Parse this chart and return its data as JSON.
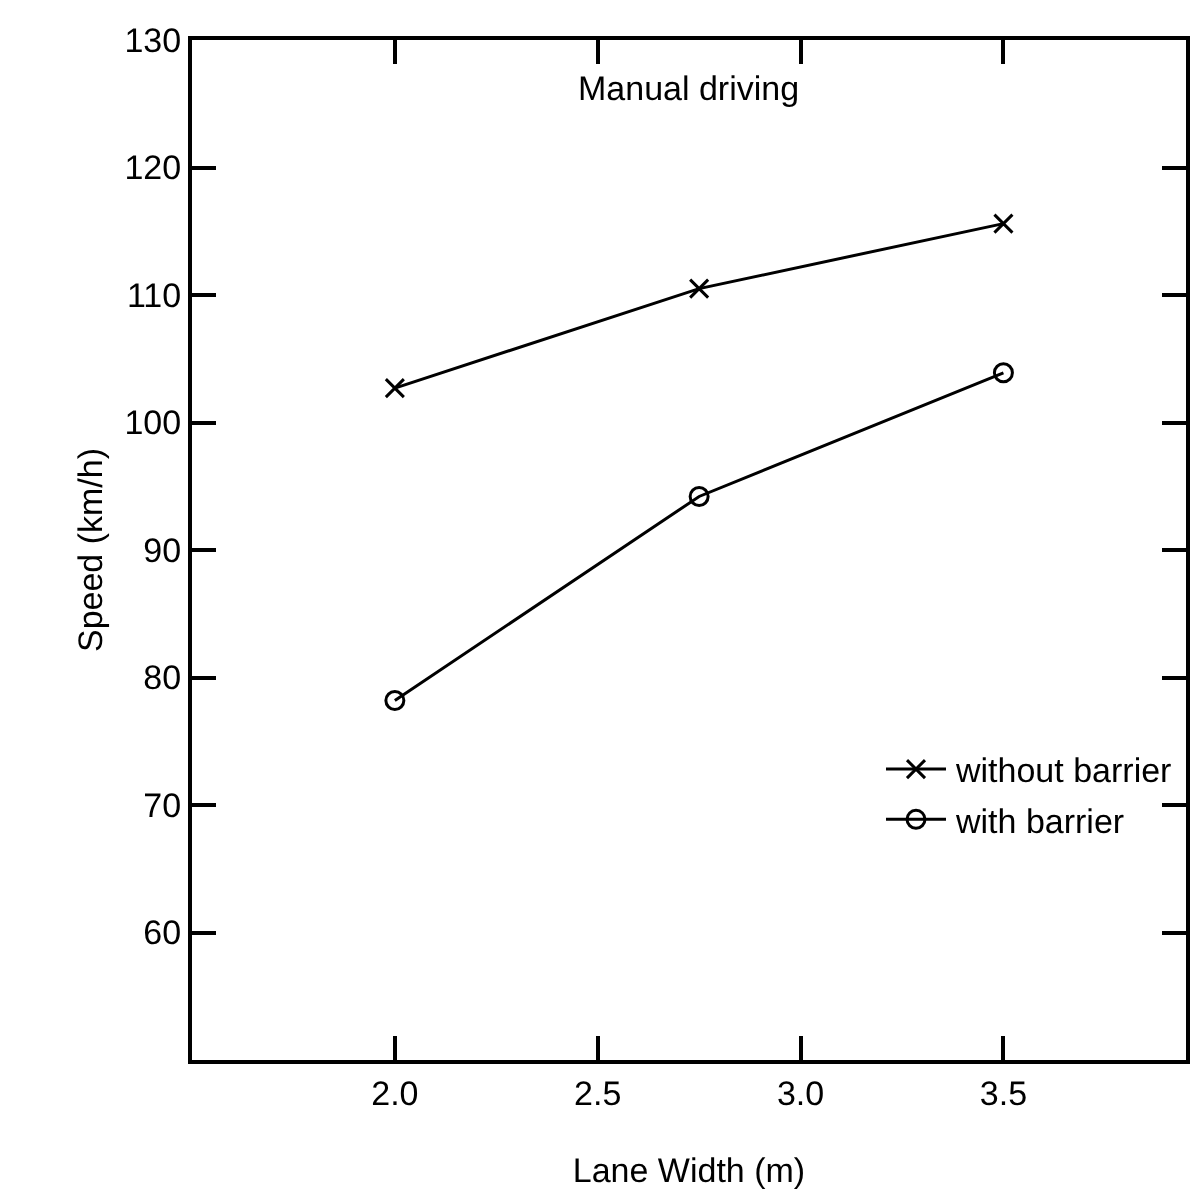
{
  "chart_data": {
    "type": "line",
    "annotations": [
      "Manual driving"
    ],
    "xlabel": "Lane Width (m)",
    "ylabel": "Speed (km/h)",
    "x": [
      2.0,
      2.75,
      3.5
    ],
    "series": [
      {
        "name": "without barrier",
        "color": "#000000",
        "marker": "cross",
        "values": [
          102.7,
          110.5,
          115.6
        ]
      },
      {
        "name": "with barrier",
        "color": "#000000",
        "marker": "circle",
        "values": [
          78.2,
          94.2,
          103.9
        ]
      }
    ],
    "xlim": [
      1.5,
      3.95
    ],
    "xticks": [
      {
        "value": 2.0,
        "label": "2.0"
      },
      2.5,
      {
        "value": 3.0,
        "label": "3.0"
      },
      3.5
    ],
    "ylim": [
      50,
      130
    ],
    "yticks": [
      60,
      70,
      80,
      90,
      100,
      110,
      120,
      130
    ],
    "grid": false,
    "legend": "bottom right",
    "line_style": "solid"
  }
}
